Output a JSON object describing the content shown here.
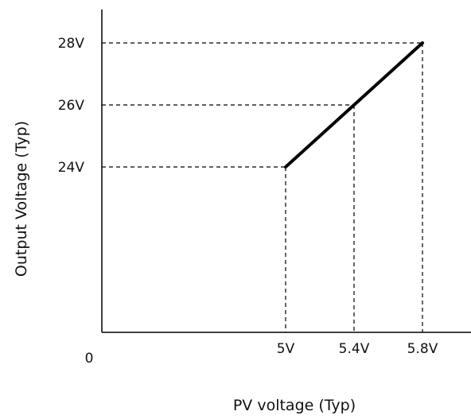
{
  "chart_data": {
    "type": "line",
    "xlabel": "PV voltage (Typ)",
    "ylabel": "Output Voltage (Typ)",
    "origin_label": "0",
    "x_ticks": [
      {
        "value": 5.0,
        "label": "5V"
      },
      {
        "value": 5.4,
        "label": "5.4V"
      },
      {
        "value": 5.8,
        "label": "5.8V"
      }
    ],
    "y_ticks": [
      {
        "value": 24,
        "label": "24V"
      },
      {
        "value": 26,
        "label": "26V"
      },
      {
        "value": 28,
        "label": "28V"
      }
    ],
    "series": [
      {
        "points": [
          {
            "x": 5.0,
            "y": 24
          },
          {
            "x": 5.8,
            "y": 28
          }
        ]
      }
    ],
    "guides": [
      {
        "x": 5.0,
        "y": 24
      },
      {
        "x": 5.4,
        "y": 26
      },
      {
        "x": 5.8,
        "y": 28
      }
    ],
    "grid": false,
    "legend": "none",
    "line_color": "#000000",
    "guide_color": "#000000"
  }
}
